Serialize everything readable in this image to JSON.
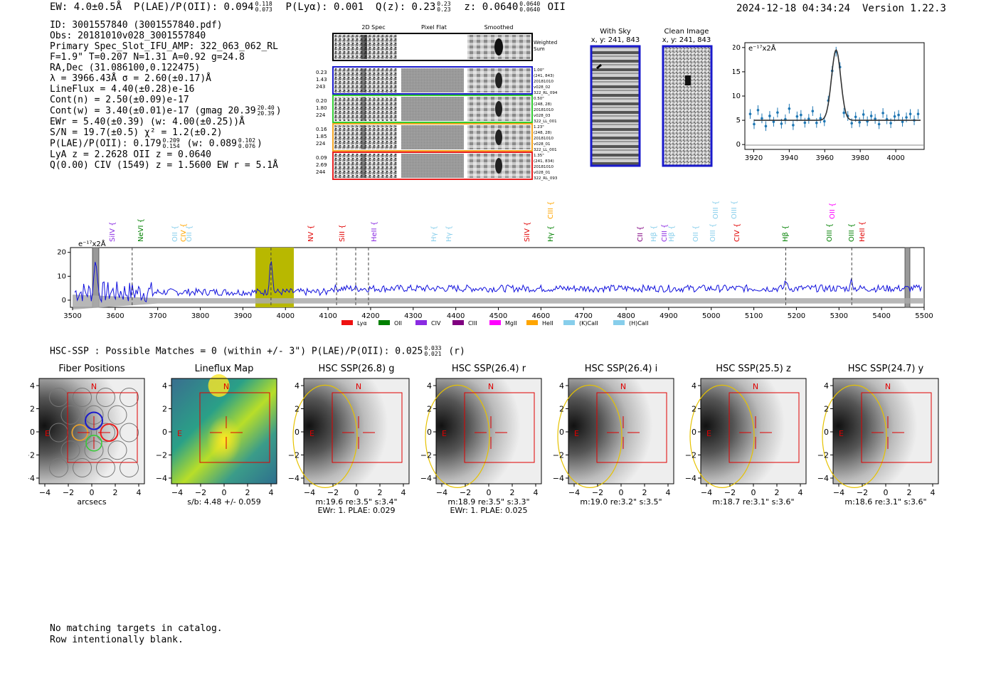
{
  "header": {
    "ew": "EW: 4.0±0.5Å",
    "plae": "P(LAE)/P(OII): 0.094",
    "plae_hi": "0.118",
    "plae_lo": "0.073",
    "plya": "P(Lyα): 0.001",
    "q": "Q(z): 0.23",
    "q_hi": "0.23",
    "q_lo": "0.23",
    "z": "z: 0.0640",
    "z_hi": "0.0640",
    "z_lo": "0.0640",
    "z_line": "OII",
    "timestamp": "2024-12-18 04:34:24",
    "version": "Version 1.22.3"
  },
  "info": {
    "id": "ID: 3001557840 (3001557840.pdf)",
    "obs": "Obs: 20181010v028_3001557840",
    "primary": "Primary Spec_Slot_IFU_AMP: 322_063_062_RL",
    "fibers": "F=1.9\"  T=0.207  N=1.31  A=0.92  g=24.8",
    "radec": "RA,Dec (31.086100,0.122475)",
    "lambda": "λ = 3966.43Å  σ = 2.60(±0.17)Å",
    "lineflux": "LineFlux = 4.40(±0.28)e-16",
    "contn": "Cont(n) = 2.50(±0.09)e-17",
    "contw": "Cont(w) = 3.40(±0.01)e-17 (gmag 20.39",
    "contw_hi": "20.40",
    "contw_lo": "20.39",
    "contw_end": ")",
    "ewr": "EWr = 5.40(±0.39) (w: 4.00(±0.25))Å",
    "sn": "S/N = 19.7(±0.5)  χ² = 1.2(±0.2)",
    "plae2": "P(LAE)/P(OII): 0.179",
    "plae2_hi": "0.209",
    "plae2_lo": "0.154",
    "plae2_w": "(w: 0.089",
    "plae2_w_hi": "0.102",
    "plae2_w_lo": "0.076",
    "plae2_end": ")",
    "lya": "LyA z = 2.2628  OII z = 0.0640",
    "civ": "Q(0.00) CIV (1549) z = 1.5600  EW r = 5.1Å"
  },
  "cutouts": {
    "col_labels": [
      "2D Spec",
      "Pixel Flat",
      "Smoothed"
    ],
    "weighted": [
      "Weighted",
      "Sum"
    ],
    "rows": [
      {
        "left": [
          "0.23",
          "1.43",
          "243"
        ],
        "right": [
          "1.00\"",
          "(241, 843)",
          "20181010",
          "v028_02",
          "322_RL_094"
        ],
        "color": "#1a1acc"
      },
      {
        "left": [
          "0.20",
          "1.80",
          "224"
        ],
        "right": [
          "0.50\"",
          "(248, 28)",
          "20181010",
          "v028_03",
          "322_LL_001"
        ],
        "color": "#33cc33"
      },
      {
        "left": [
          "0.16",
          "1.85",
          "224"
        ],
        "right": [
          "1.23\"",
          "(248, 28)",
          "20181010",
          "v028_01",
          "322_LL_001"
        ],
        "color": "#f5a623"
      },
      {
        "left": [
          "0.09",
          "2.69",
          "244"
        ],
        "right": [
          "1.35\"",
          "(241, 834)",
          "20181010",
          "v028_01",
          "322_RL_093"
        ],
        "color": "#e82020"
      }
    ],
    "with_sky": [
      "With Sky",
      "x, y: 241, 843"
    ],
    "clean": [
      "Clean Image",
      "x, y: 241, 843"
    ]
  },
  "zoom_chart": {
    "unit": "e⁻¹⁷x2Å",
    "xticks": [
      "3920",
      "3940",
      "3960",
      "3980",
      "4000"
    ],
    "yticks": [
      "0",
      "5",
      "10",
      "15",
      "20"
    ]
  },
  "full_spectrum": {
    "unit": "e⁻¹⁷x2Å",
    "xticks": [
      "3500",
      "3600",
      "3700",
      "3800",
      "3900",
      "4000",
      "4100",
      "4200",
      "4300",
      "4400",
      "4500",
      "4600",
      "4700",
      "4800",
      "4900",
      "5000",
      "5100",
      "5200",
      "5300",
      "5400",
      "5500"
    ],
    "yticks": [
      "0",
      "10",
      "20"
    ],
    "line_labels": [
      {
        "t": "SiIV",
        "c": "#8a2be2",
        "x": 157,
        "row": 1
      },
      {
        "t": "NeVI",
        "c": "#008000",
        "x": 197,
        "row": 1
      },
      {
        "t": "OII",
        "c": "#87ceeb",
        "x": 245,
        "row": 1
      },
      {
        "t": "CIV",
        "c": "#ffa500",
        "x": 257,
        "row": 1
      },
      {
        "t": "OII",
        "c": "#87ceeb",
        "x": 265,
        "row": 1
      },
      {
        "t": "NV",
        "c": "#e00000",
        "x": 436,
        "row": 1
      },
      {
        "t": "SiII",
        "c": "#e00000",
        "x": 480,
        "row": 1
      },
      {
        "t": "HeII",
        "c": "#8a2be2",
        "x": 525,
        "row": 1
      },
      {
        "t": "Hγ",
        "c": "#87ceeb",
        "x": 609,
        "row": 1
      },
      {
        "t": "Hγ",
        "c": "#87ceeb",
        "x": 630,
        "row": 1
      },
      {
        "t": "CIII",
        "c": "#ffa500",
        "x": 773,
        "row": 0
      },
      {
        "t": "SiIV",
        "c": "#e00000",
        "x": 740,
        "row": 1
      },
      {
        "t": "Hγ",
        "c": "#008000",
        "x": 773,
        "row": 1
      },
      {
        "t": "CII",
        "c": "#800080",
        "x": 899,
        "row": 1
      },
      {
        "t": "Hβ",
        "c": "#87ceeb",
        "x": 918,
        "row": 1
      },
      {
        "t": "CIII",
        "c": "#8a2be2",
        "x": 933,
        "row": 1
      },
      {
        "t": "Hβ",
        "c": "#87ceeb",
        "x": 943,
        "row": 1
      },
      {
        "t": "OII",
        "c": "#87ceeb",
        "x": 977,
        "row": 1
      },
      {
        "t": "OIII",
        "c": "#87ceeb",
        "x": 1001,
        "row": 1
      },
      {
        "t": "OIII",
        "c": "#87ceeb",
        "x": 1005,
        "row": 0
      },
      {
        "t": "OIII",
        "c": "#87ceeb",
        "x": 1031,
        "row": 0
      },
      {
        "t": "CIV",
        "c": "#e00000",
        "x": 1035,
        "row": 1
      },
      {
        "t": "Hβ",
        "c": "#008000",
        "x": 1103,
        "row": 1
      },
      {
        "t": "OII",
        "c": "#ff00ff",
        "x": 1169,
        "row": 0
      },
      {
        "t": "OIII",
        "c": "#008000",
        "x": 1165,
        "row": 1
      },
      {
        "t": "OIII",
        "c": "#008000",
        "x": 1196,
        "row": 1
      },
      {
        "t": "HeII",
        "c": "#e00000",
        "x": 1211,
        "row": 1
      }
    ],
    "legend": [
      {
        "t": "Lyα",
        "c": "#ee1111"
      },
      {
        "t": "OII",
        "c": "#008000"
      },
      {
        "t": "CIV",
        "c": "#8a2be2"
      },
      {
        "t": "CIII",
        "c": "#800080"
      },
      {
        "t": "MgII",
        "c": "#ff00ff"
      },
      {
        "t": "HeII",
        "c": "#ffa500"
      },
      {
        "t": "(K)CaII",
        "c": "#87ceeb"
      },
      {
        "t": "(H)CaII",
        "c": "#87ceeb"
      }
    ]
  },
  "hsc": {
    "title": "HSC-SSP : Possible Matches = 0 (within +/- 3\")  P(LAE)/P(OII): 0.025",
    "plae_hi": "0.033",
    "plae_lo": "0.021",
    "band": "(r)",
    "panels": [
      {
        "title": "Fiber Positions",
        "cap1": "arcsecs",
        "cap2": "",
        "kind": "fiber"
      },
      {
        "title": "Lineflux Map",
        "cap1": "s/b: 4.48 +/- 0.059",
        "cap2": "",
        "kind": "flux"
      },
      {
        "title": "HSC SSP(26.8) g",
        "cap1": "m:19.6  re:3.5\"  s:3.4\"",
        "cap2": "EWr: 1. PLAE: 0.029",
        "kind": "img"
      },
      {
        "title": "HSC SSP(26.4) r",
        "cap1": "m:18.9  re:3.5\"  s:3.3\"",
        "cap2": "EWr: 1. PLAE: 0.025",
        "kind": "img"
      },
      {
        "title": "HSC SSP(26.4) i",
        "cap1": "m:19.0  re:3.2\"  s:3.5\"",
        "cap2": "",
        "kind": "img"
      },
      {
        "title": "HSC SSP(25.5) z",
        "cap1": "m:18.7  re:3.1\"  s:3.6\"",
        "cap2": "",
        "kind": "img"
      },
      {
        "title": "HSC SSP(24.7) y",
        "cap1": "m:18.6  re:3.1\"  s:3.6\"",
        "cap2": "",
        "kind": "img"
      }
    ],
    "xticks": [
      "−4",
      "−2",
      "0",
      "2",
      "4"
    ],
    "yticks": [
      "4",
      "2",
      "0",
      "−2",
      "−4"
    ],
    "north": "N",
    "east": "E"
  },
  "footer": {
    "line1": "No matching targets in catalog.",
    "line2": "Row intentionally blank."
  }
}
